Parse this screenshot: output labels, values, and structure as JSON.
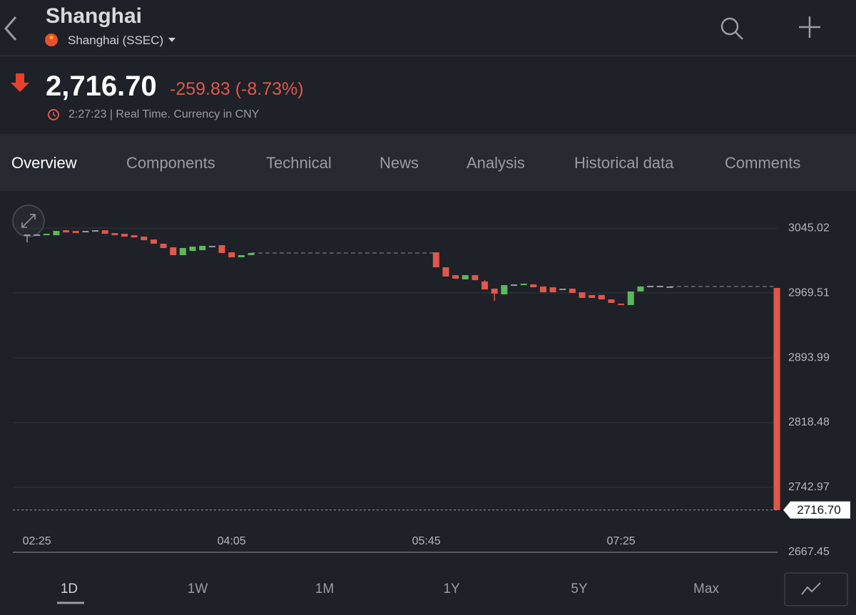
{
  "header": {
    "title": "Shanghai",
    "exchange": "Shanghai (SSEC)",
    "price": "2,716.70",
    "change": "-259.83 (-8.73%)",
    "status": "2:27:23 | Real Time. Currency in CNY"
  },
  "tabs": {
    "items": [
      "Overview",
      "Components",
      "Technical",
      "News",
      "Analysis",
      "Historical data",
      "Comments"
    ],
    "active": 0
  },
  "ranges": {
    "items": [
      "1D",
      "1W",
      "1M",
      "1Y",
      "5Y",
      "Max"
    ],
    "active": 0
  },
  "chart_data": {
    "type": "candlestick",
    "up_color": "#5cb85c",
    "down_color": "#e0574b",
    "flat_color": "#9a9ca3",
    "categories": [
      null,
      "02:25",
      null,
      null,
      null,
      null,
      null,
      null,
      null,
      null,
      null,
      null,
      null,
      null,
      null,
      null,
      null,
      null,
      null,
      null,
      null,
      "04:05",
      null,
      null,
      null,
      null,
      null,
      null,
      null,
      null,
      null,
      null,
      null,
      null,
      null,
      null,
      null,
      null,
      null,
      null,
      null,
      "05:45",
      null,
      null,
      null,
      null,
      null,
      null,
      null,
      null,
      null,
      null,
      null,
      null,
      null,
      null,
      null,
      null,
      null,
      null,
      null,
      "07:25",
      null,
      null,
      null,
      null,
      null,
      null,
      null,
      null,
      null,
      null,
      null,
      null,
      null,
      null,
      null,
      null
    ],
    "open": [
      3037.6,
      3037.6,
      3037.6,
      3036.7,
      3042.5,
      3041.7,
      3041.7,
      3042.5,
      3042.5,
      3039.2,
      3038.4,
      3036.7,
      3035.1,
      3031.7,
      3026.8,
      3022.6,
      3013.5,
      3018.4,
      3019.3,
      3024.3,
      3025.1,
      3016.8,
      3011.0,
      3013.5,
      null,
      null,
      null,
      null,
      null,
      null,
      null,
      null,
      null,
      null,
      null,
      null,
      null,
      null,
      null,
      null,
      null,
      null,
      3016.8,
      2999.4,
      2990.2,
      2985.3,
      2990.2,
      2982.8,
      2974.5,
      2967.8,
      2979.4,
      2978.6,
      2979.4,
      2977.0,
      2976.1,
      2974.5,
      2974.5,
      2970.3,
      2967.0,
      2967.0,
      2962.0,
      2957.0,
      2955.4,
      2971.2,
      2977.8,
      2977.8,
      2977.0,
      null,
      null,
      null,
      null,
      null,
      null,
      null,
      null,
      null,
      null,
      2975.3
    ],
    "high": [
      3037.6,
      3037.6,
      3038.4,
      3041.7,
      3042.5,
      3041.7,
      3041.7,
      3042.5,
      3042.5,
      3039.2,
      3038.4,
      3036.7,
      3035.1,
      3031.7,
      3026.8,
      3022.6,
      3021.8,
      3023.4,
      3024.3,
      3024.3,
      3025.1,
      3016.8,
      3013.5,
      3016.0,
      null,
      null,
      null,
      null,
      null,
      null,
      null,
      null,
      null,
      null,
      null,
      null,
      null,
      null,
      null,
      null,
      null,
      null,
      3016.8,
      2999.4,
      2990.2,
      2990.2,
      2990.2,
      2984.4,
      2974.5,
      2978.6,
      2979.4,
      2980.3,
      2979.4,
      2977.0,
      2976.1,
      2974.5,
      2974.5,
      2970.3,
      2967.0,
      2967.0,
      2962.0,
      2957.0,
      2971.2,
      2977.0,
      2977.8,
      2977.8,
      2977.0,
      null,
      null,
      null,
      null,
      null,
      null,
      null,
      null,
      null,
      null,
      2975.3
    ],
    "low": [
      3028.4,
      3036.7,
      3037.6,
      3036.7,
      3040.0,
      3039.2,
      3041.7,
      3042.5,
      3038.4,
      3036.7,
      3035.1,
      3034.2,
      3030.9,
      3026.8,
      3021.8,
      3013.5,
      3013.5,
      3018.4,
      3019.3,
      3024.3,
      3016.0,
      3011.0,
      3011.0,
      3013.5,
      null,
      null,
      null,
      null,
      null,
      null,
      null,
      null,
      null,
      null,
      null,
      null,
      null,
      null,
      null,
      null,
      null,
      null,
      2999.4,
      2988.6,
      2986.1,
      2985.3,
      2984.4,
      2973.6,
      2960.4,
      2967.8,
      2979.4,
      2978.6,
      2976.1,
      2970.3,
      2970.3,
      2974.5,
      2969.5,
      2963.7,
      2963.7,
      2962.0,
      2957.9,
      2955.4,
      2955.4,
      2971.2,
      2977.8,
      2977.8,
      2977.0,
      null,
      null,
      null,
      null,
      null,
      null,
      null,
      null,
      null,
      null,
      2716.7
    ],
    "close": [
      3037.6,
      3037.6,
      3038.4,
      3041.7,
      3040.0,
      3039.2,
      3041.7,
      3042.5,
      3038.4,
      3036.7,
      3035.1,
      3034.2,
      3030.9,
      3026.8,
      3021.8,
      3013.5,
      3021.8,
      3023.4,
      3024.3,
      3024.3,
      3016.0,
      3011.0,
      3013.5,
      3016.0,
      null,
      null,
      null,
      null,
      null,
      null,
      null,
      null,
      null,
      null,
      null,
      null,
      null,
      null,
      null,
      null,
      null,
      null,
      2999.4,
      2988.6,
      2986.1,
      2990.2,
      2984.4,
      2973.6,
      2968.7,
      2978.6,
      2979.4,
      2980.3,
      2976.1,
      2970.3,
      2970.3,
      2974.5,
      2969.5,
      2963.7,
      2963.7,
      2962.0,
      2957.9,
      2955.4,
      2971.2,
      2977.0,
      2977.8,
      2977.8,
      2977.0,
      null,
      null,
      null,
      null,
      null,
      null,
      null,
      null,
      null,
      null,
      2716.7
    ],
    "ylim": [
      2667.45,
      3065
    ],
    "yticks": [
      2667.45,
      2742.97,
      2818.48,
      2893.99,
      2969.51,
      3045.02
    ],
    "last_price": {
      "value": 2716.7,
      "label": "2716.70"
    },
    "grid": true
  }
}
